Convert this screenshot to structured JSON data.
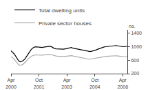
{
  "chart_data": {
    "type": "line",
    "ylabel": "no.",
    "categories": [
      "Apr\n2000",
      null,
      null,
      null,
      null,
      null,
      null,
      null,
      null,
      null,
      null,
      null,
      null,
      null,
      null,
      null,
      null,
      null,
      "Oct\n2001",
      null,
      null,
      null,
      null,
      null,
      null,
      null,
      null,
      null,
      null,
      null,
      null,
      null,
      null,
      null,
      null,
      null,
      "Apr\n2003",
      null,
      null,
      null,
      null,
      null,
      null,
      null,
      null,
      null,
      null,
      null,
      null,
      null,
      null,
      null,
      null,
      null,
      "Oct\n2004",
      null,
      null,
      null,
      null,
      null,
      null,
      null,
      null,
      null,
      null,
      null,
      null,
      null,
      null,
      null,
      null,
      null,
      "Apr\n2006",
      null,
      null,
      null
    ],
    "series": [
      {
        "name": "Total dwelling units",
        "color": "#000000",
        "values": [
          880,
          840,
          790,
          720,
          640,
          575,
          555,
          565,
          595,
          640,
          710,
          790,
          860,
          920,
          960,
          990,
          1000,
          995,
          985,
          975,
          980,
          990,
          1000,
          1010,
          1020,
          1015,
          1005,
          970,
          950,
          940,
          935,
          930,
          925,
          920,
          928,
          938,
          948,
          958,
          968,
          978,
          958,
          948,
          938,
          928,
          918,
          908,
          898,
          888,
          878,
          868,
          858,
          858,
          868,
          878,
          888,
          908,
          928,
          948,
          968,
          988,
          995,
          1002,
          1008,
          1015,
          1022,
          1030,
          1038,
          1045,
          1038,
          1028,
          1015,
          1008,
          1002,
          1002,
          1010,
          1018
        ]
      },
      {
        "name": "Private sector houses",
        "color": "#aaaaaa",
        "values": [
          710,
          680,
          630,
          570,
          510,
          460,
          450,
          460,
          490,
          530,
          580,
          635,
          678,
          715,
          738,
          752,
          760,
          756,
          750,
          746,
          750,
          758,
          762,
          768,
          775,
          770,
          764,
          748,
          732,
          726,
          720,
          715,
          710,
          706,
          710,
          715,
          720,
          725,
          730,
          735,
          724,
          714,
          704,
          694,
          684,
          674,
          664,
          654,
          644,
          638,
          632,
          632,
          638,
          644,
          650,
          660,
          670,
          680,
          690,
          700,
          705,
          710,
          715,
          720,
          725,
          730,
          735,
          738,
          733,
          727,
          718,
          712,
          706,
          703,
          708,
          713
        ]
      }
    ],
    "ylim": [
      200,
      1500
    ],
    "yticks": [
      200,
      600,
      1000,
      1400
    ],
    "grid": false,
    "legend": "upper left"
  }
}
